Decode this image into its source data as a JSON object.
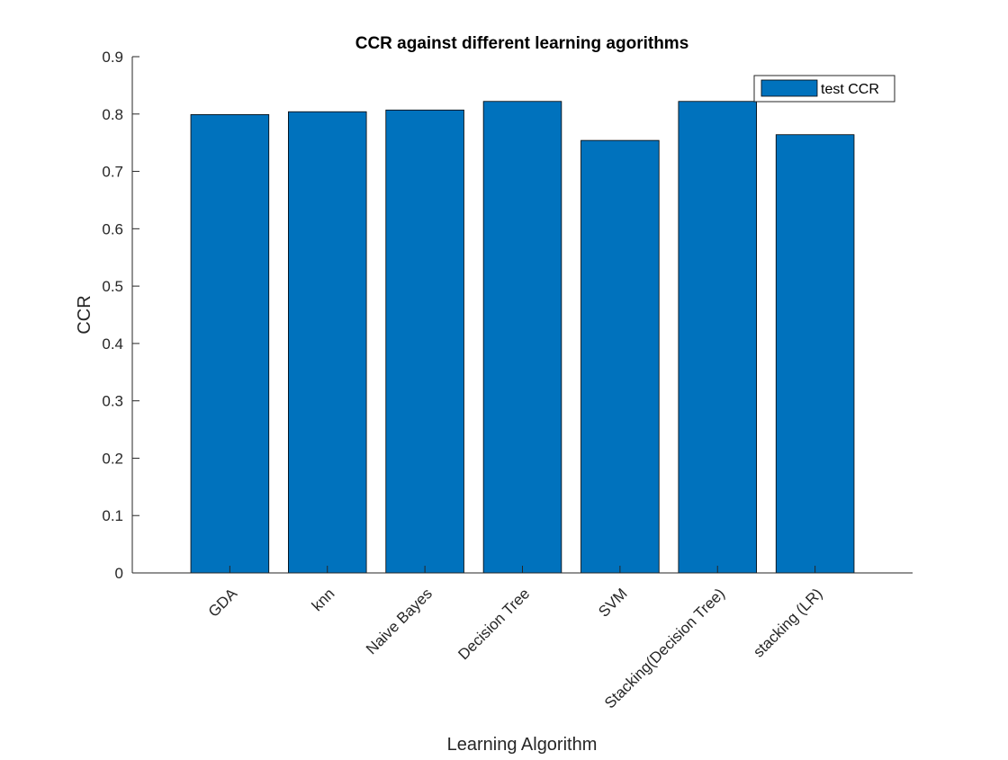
{
  "chart_data": {
    "type": "bar",
    "title": "CCR against different learning agorithms",
    "xlabel": "Learning Algorithm",
    "ylabel": "CCR",
    "categories": [
      "GDA",
      "knn",
      "Naive Bayes",
      "Decision Tree",
      "SVM",
      "Stacking(Decision Tree)",
      "stacking (LR)"
    ],
    "series": [
      {
        "name": "test CCR",
        "values": [
          0.799,
          0.804,
          0.807,
          0.822,
          0.754,
          0.822,
          0.764
        ],
        "color": "#0072BD"
      }
    ],
    "ylim": [
      0,
      0.9
    ],
    "yticks": [
      "0",
      "0.1",
      "0.2",
      "0.3",
      "0.4",
      "0.5",
      "0.6",
      "0.7",
      "0.8",
      "0.9"
    ],
    "grid": false,
    "legend_position": "top-right"
  }
}
